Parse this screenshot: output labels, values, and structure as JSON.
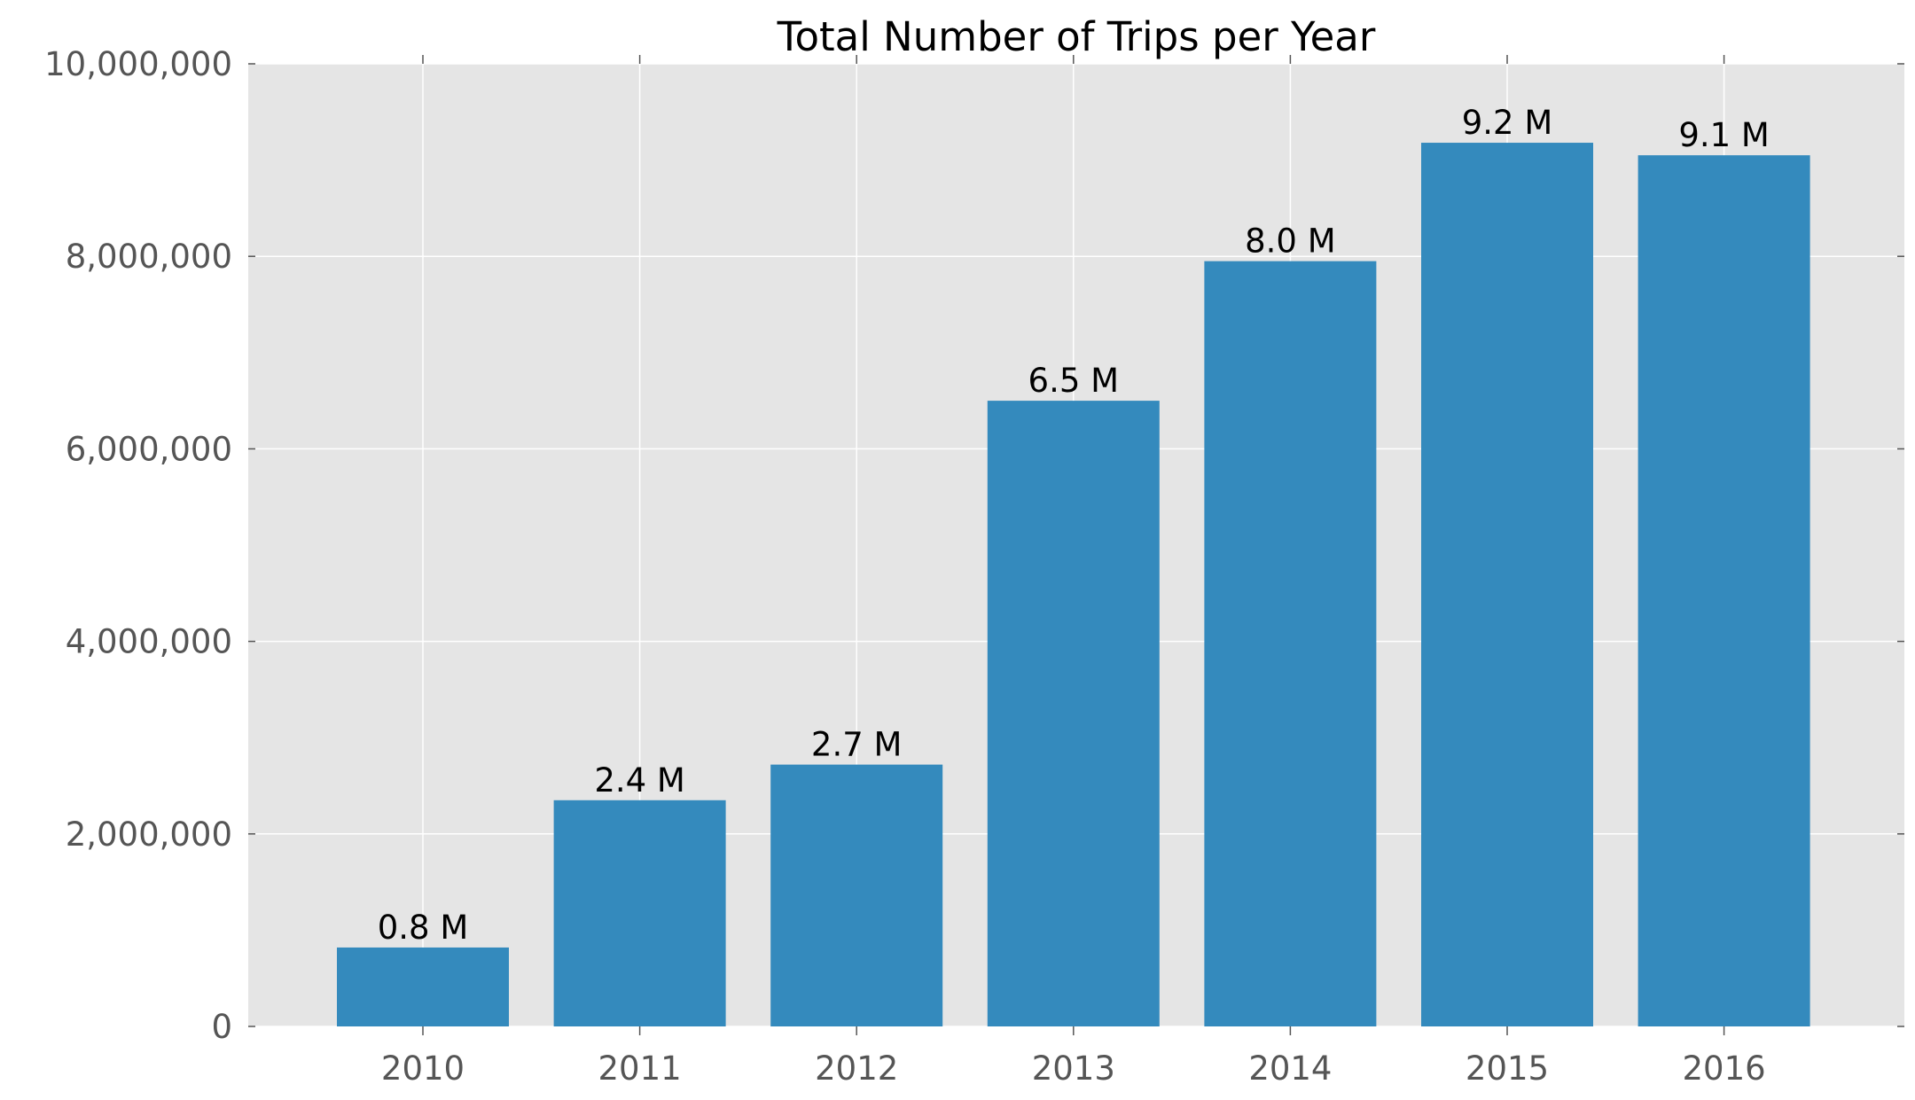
{
  "chart_data": {
    "type": "bar",
    "title": "Total Number of Trips per Year",
    "xlabel": "",
    "ylabel": "",
    "categories": [
      "2010",
      "2011",
      "2012",
      "2013",
      "2014",
      "2015",
      "2016"
    ],
    "values": [
      820000,
      2350000,
      2720000,
      6500000,
      7950000,
      9180000,
      9050000
    ],
    "data_labels": [
      "0.8 M",
      "2.4 M",
      "2.7 M",
      "6.5 M",
      "8.0 M",
      "9.2 M",
      "9.1 M"
    ],
    "ylim": [
      0,
      10000000
    ],
    "yticks": [
      0,
      2000000,
      4000000,
      6000000,
      8000000,
      10000000
    ],
    "ytick_labels": [
      "0",
      "2,000,000",
      "4,000,000",
      "6,000,000",
      "8,000,000",
      "10,000,000"
    ],
    "grid": true,
    "legend": "none",
    "colors": {
      "bar": "#348ABD",
      "plot_background": "#E5E5E5",
      "grid": "#FFFFFF",
      "tick_text": "#555555"
    }
  }
}
